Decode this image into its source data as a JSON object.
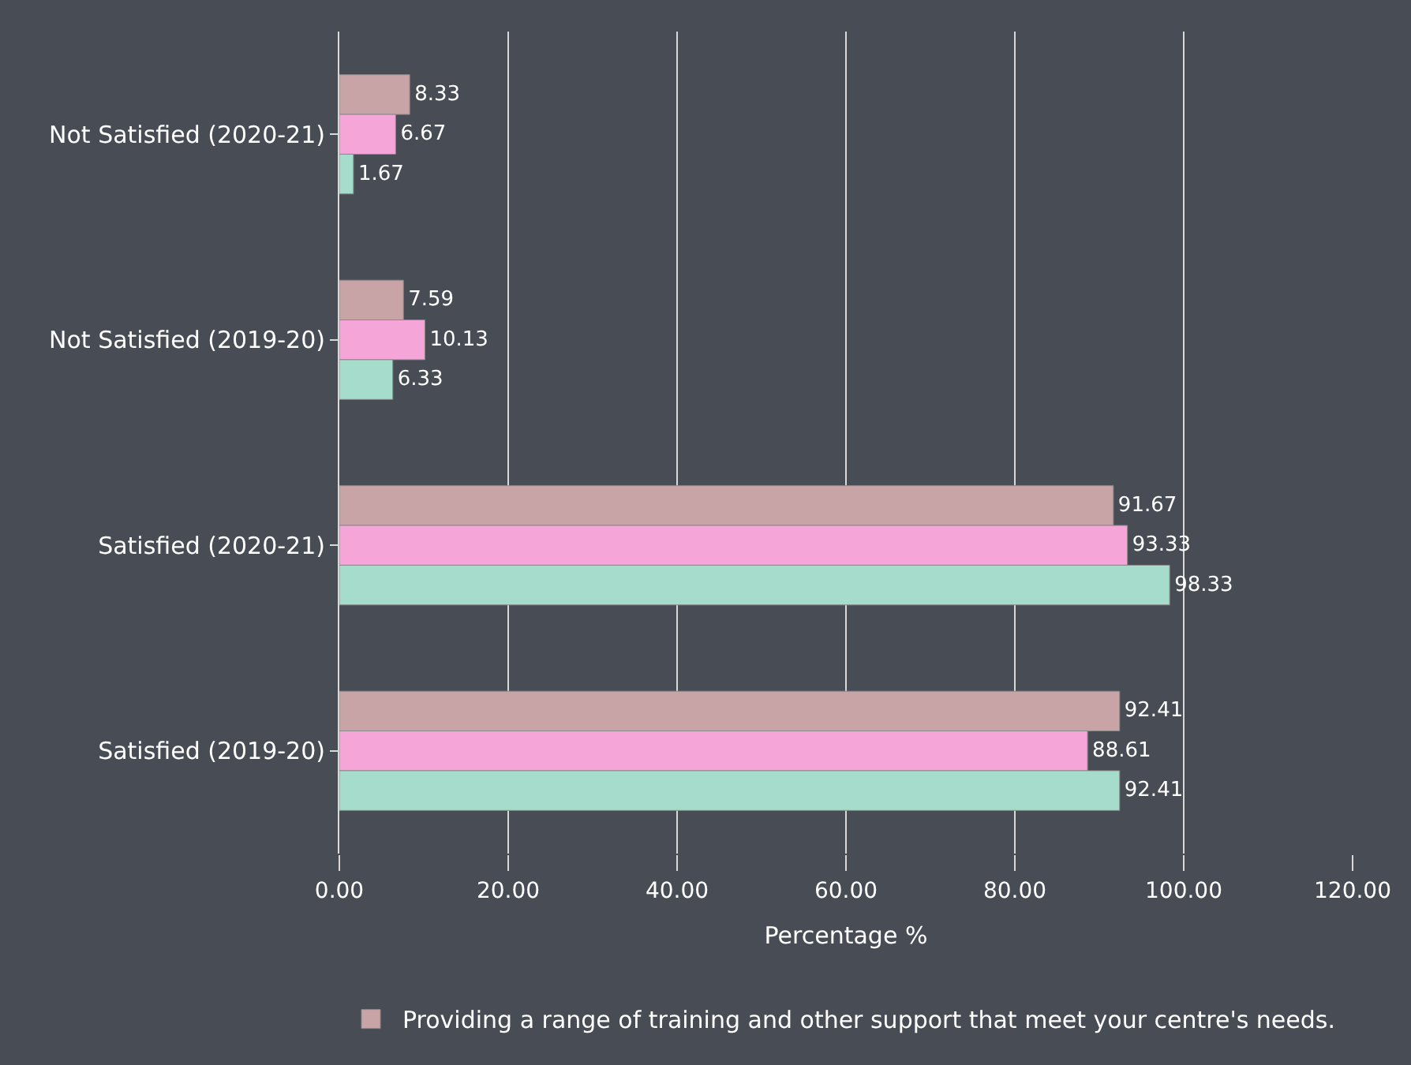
{
  "chart_data": {
    "type": "bar",
    "orientation": "horizontal",
    "xlabel": "Percentage %",
    "categories": [
      "Not Satisfied (2020-21)",
      "Not Satisfied (2019-20)",
      "Satisfied (2020-21)",
      "Satisfied (2019-20)"
    ],
    "series": [
      {
        "name": "Providing a range of training and other support that meet your centre's needs.",
        "color": "#c9a4a7",
        "values": [
          8.33,
          7.59,
          91.67,
          92.41
        ]
      },
      {
        "color": "#f5a5d8",
        "values": [
          6.67,
          10.13,
          93.33,
          88.61
        ]
      },
      {
        "color": "#a5dccb",
        "values": [
          1.67,
          6.33,
          98.33,
          92.41
        ]
      }
    ],
    "xlim": [
      0,
      120
    ],
    "xticks": [
      {
        "value": 0,
        "label": "0.00"
      },
      {
        "value": 20,
        "label": "20.00"
      },
      {
        "value": 40,
        "label": "40.00"
      },
      {
        "value": 60,
        "label": "60.00"
      },
      {
        "value": 80,
        "label": "80.00"
      },
      {
        "value": 100,
        "label": "100.00"
      },
      {
        "value": 120,
        "label": "120.00"
      }
    ],
    "grid": "x",
    "legend": "bottom",
    "data_labels": true
  }
}
